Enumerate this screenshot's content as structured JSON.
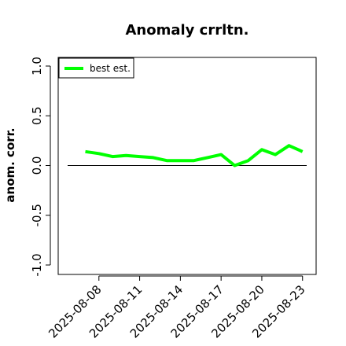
{
  "chart_data": {
    "type": "line",
    "title": "Anomaly crrltn.",
    "xlabel": "",
    "ylabel": "anom. corr.",
    "ylim": [
      -1.0,
      1.0
    ],
    "yticks": [
      "-1.0",
      "-0.5",
      "0.0",
      "0.5",
      "1.0"
    ],
    "ytick_values": [
      -1.0,
      -0.5,
      0.0,
      0.5,
      1.0
    ],
    "xlim": [
      "2025-08-05",
      "2025-08-24"
    ],
    "xticks": [
      "2025-08-08",
      "2025-08-11",
      "2025-08-14",
      "2025-08-17",
      "2025-08-20",
      "2025-08-23"
    ],
    "reference_line": 0.0,
    "legend_position": "top-left",
    "grid": false,
    "series": [
      {
        "name": "best est.",
        "color": "#00ff00",
        "x": [
          "2025-08-07",
          "2025-08-08",
          "2025-08-09",
          "2025-08-10",
          "2025-08-11",
          "2025-08-12",
          "2025-08-13",
          "2025-08-14",
          "2025-08-15",
          "2025-08-16",
          "2025-08-17",
          "2025-08-18",
          "2025-08-19",
          "2025-08-20",
          "2025-08-21",
          "2025-08-22",
          "2025-08-23"
        ],
        "values": [
          0.14,
          0.12,
          0.09,
          0.1,
          0.09,
          0.08,
          0.05,
          0.05,
          0.05,
          0.08,
          0.11,
          0.0,
          0.05,
          0.16,
          0.11,
          0.2,
          0.14
        ]
      }
    ]
  }
}
